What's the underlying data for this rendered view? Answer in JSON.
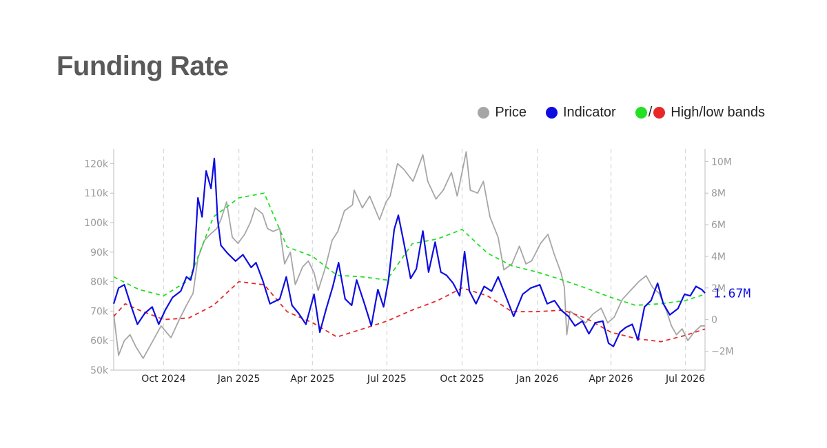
{
  "title": "Funding Rate",
  "legend": {
    "price_label": "Price",
    "indicator_label": "Indicator",
    "slash": "/",
    "bands_label": "High/low bands"
  },
  "colors": {
    "price": "#a6a6a6",
    "indicator": "#0d0de0",
    "high_band": "#22e022",
    "low_band": "#e82828",
    "grid": "#d9d9d9",
    "axis": "#bdbdbd"
  },
  "chart_data": {
    "type": "line",
    "title": "Funding Rate",
    "x_range": [
      "2024-08-01",
      "2026-07-25"
    ],
    "x_ticks": [
      {
        "date": "2024-10-01",
        "label": "Oct 2024"
      },
      {
        "date": "2025-01-01",
        "label": "Jan 2025"
      },
      {
        "date": "2025-04-01",
        "label": "Apr 2025"
      },
      {
        "date": "2025-07-01",
        "label": "Jul 2025"
      },
      {
        "date": "2025-10-01",
        "label": "Oct 2025"
      },
      {
        "date": "2026-01-01",
        "label": "Jan 2026"
      },
      {
        "date": "2026-04-01",
        "label": "Apr 2026"
      },
      {
        "date": "2026-07-01",
        "label": "Jul 2026"
      }
    ],
    "y_left": {
      "range": [
        50000,
        125000
      ],
      "ticks": [
        50000,
        60000,
        70000,
        80000,
        90000,
        100000,
        110000,
        120000
      ],
      "tick_labels": [
        "50k",
        "60k",
        "70k",
        "80k",
        "90k",
        "100k",
        "110k",
        "120k"
      ]
    },
    "y_right": {
      "range": [
        -3200000,
        10800000
      ],
      "ticks": [
        -2000000,
        0,
        2000000,
        4000000,
        6000000,
        8000000,
        10000000
      ],
      "tick_labels": [
        "−2M",
        "0",
        "2M",
        "4M",
        "6M",
        "8M",
        "10M"
      ]
    },
    "grid": "vertical dashed at x ticks",
    "legend_position": "top-right",
    "series": [
      {
        "name": "Price",
        "axis": "left",
        "style": "solid",
        "points": [
          [
            "2024-08-01",
            69000
          ],
          [
            "2024-08-07",
            55000
          ],
          [
            "2024-08-14",
            60000
          ],
          [
            "2024-08-21",
            62000
          ],
          [
            "2024-08-28",
            58000
          ],
          [
            "2024-09-06",
            54000
          ],
          [
            "2024-09-16",
            59000
          ],
          [
            "2024-09-28",
            65000
          ],
          [
            "2024-10-10",
            61000
          ],
          [
            "2024-10-20",
            67000
          ],
          [
            "2024-10-29",
            72000
          ],
          [
            "2024-11-06",
            76000
          ],
          [
            "2024-11-12",
            88000
          ],
          [
            "2024-11-20",
            94000
          ],
          [
            "2024-11-27",
            96000
          ],
          [
            "2024-12-05",
            98000
          ],
          [
            "2024-12-10",
            101000
          ],
          [
            "2024-12-17",
            107000
          ],
          [
            "2024-12-24",
            95000
          ],
          [
            "2024-12-31",
            93000
          ],
          [
            "2025-01-08",
            96000
          ],
          [
            "2025-01-15",
            100000
          ],
          [
            "2025-01-21",
            105000
          ],
          [
            "2025-01-30",
            103000
          ],
          [
            "2025-02-05",
            98000
          ],
          [
            "2025-02-12",
            97000
          ],
          [
            "2025-02-20",
            98000
          ],
          [
            "2025-02-26",
            86000
          ],
          [
            "2025-03-05",
            90000
          ],
          [
            "2025-03-11",
            79000
          ],
          [
            "2025-03-20",
            85000
          ],
          [
            "2025-03-27",
            87000
          ],
          [
            "2025-04-03",
            83000
          ],
          [
            "2025-04-08",
            77000
          ],
          [
            "2025-04-17",
            85000
          ],
          [
            "2025-04-25",
            94000
          ],
          [
            "2025-05-02",
            97000
          ],
          [
            "2025-05-10",
            104000
          ],
          [
            "2025-05-20",
            106000
          ],
          [
            "2025-05-22",
            111000
          ],
          [
            "2025-06-01",
            105000
          ],
          [
            "2025-06-10",
            109000
          ],
          [
            "2025-06-22",
            101000
          ],
          [
            "2025-06-30",
            107000
          ],
          [
            "2025-07-05",
            109000
          ],
          [
            "2025-07-14",
            120000
          ],
          [
            "2025-07-22",
            118000
          ],
          [
            "2025-08-02",
            114000
          ],
          [
            "2025-08-14",
            123000
          ],
          [
            "2025-08-20",
            114000
          ],
          [
            "2025-08-30",
            108000
          ],
          [
            "2025-09-08",
            111000
          ],
          [
            "2025-09-18",
            117000
          ],
          [
            "2025-09-25",
            109000
          ],
          [
            "2025-10-06",
            124000
          ],
          [
            "2025-10-11",
            111000
          ],
          [
            "2025-10-20",
            110000
          ],
          [
            "2025-10-27",
            114000
          ],
          [
            "2025-11-04",
            102000
          ],
          [
            "2025-11-14",
            95000
          ],
          [
            "2025-11-21",
            84000
          ],
          [
            "2025-12-01",
            86000
          ],
          [
            "2025-12-10",
            92000
          ],
          [
            "2025-12-18",
            86000
          ],
          [
            "2025-12-25",
            87000
          ],
          [
            "2026-01-05",
            93000
          ],
          [
            "2026-01-14",
            96000
          ],
          [
            "2026-01-22",
            89000
          ],
          [
            "2026-01-30",
            83000
          ],
          [
            "2026-02-03",
            78000
          ],
          [
            "2026-02-06",
            62000
          ],
          [
            "2026-02-10",
            70000
          ],
          [
            "2026-02-20",
            68000
          ],
          [
            "2026-03-01",
            66000
          ],
          [
            "2026-03-10",
            69000
          ],
          [
            "2026-03-20",
            71000
          ],
          [
            "2026-03-28",
            66000
          ],
          [
            "2026-04-05",
            68000
          ],
          [
            "2026-04-15",
            74000
          ],
          [
            "2026-04-25",
            77000
          ],
          [
            "2026-05-05",
            80000
          ],
          [
            "2026-05-14",
            82000
          ],
          [
            "2026-05-22",
            78000
          ],
          [
            "2026-05-30",
            76000
          ],
          [
            "2026-06-08",
            70000
          ],
          [
            "2026-06-14",
            65000
          ],
          [
            "2026-06-20",
            62000
          ],
          [
            "2026-06-27",
            64000
          ],
          [
            "2026-07-04",
            60000
          ],
          [
            "2026-07-12",
            63000
          ],
          [
            "2026-07-20",
            65000
          ],
          [
            "2026-07-25",
            65000
          ]
        ]
      },
      {
        "name": "Indicator",
        "axis": "right",
        "style": "solid",
        "points": [
          [
            "2024-08-01",
            1000000
          ],
          [
            "2024-08-07",
            2000000
          ],
          [
            "2024-08-14",
            2200000
          ],
          [
            "2024-08-22",
            900000
          ],
          [
            "2024-08-30",
            -300000
          ],
          [
            "2024-09-08",
            400000
          ],
          [
            "2024-09-17",
            800000
          ],
          [
            "2024-09-25",
            -300000
          ],
          [
            "2024-10-03",
            600000
          ],
          [
            "2024-10-12",
            1400000
          ],
          [
            "2024-10-22",
            1800000
          ],
          [
            "2024-10-29",
            2700000
          ],
          [
            "2024-11-03",
            2500000
          ],
          [
            "2024-11-07",
            3300000
          ],
          [
            "2024-11-12",
            7700000
          ],
          [
            "2024-11-17",
            6500000
          ],
          [
            "2024-11-22",
            9400000
          ],
          [
            "2024-11-28",
            8300000
          ],
          [
            "2024-12-02",
            10200000
          ],
          [
            "2024-12-06",
            6400000
          ],
          [
            "2024-12-10",
            4700000
          ],
          [
            "2024-12-18",
            4200000
          ],
          [
            "2024-12-28",
            3700000
          ],
          [
            "2025-01-06",
            4100000
          ],
          [
            "2025-01-16",
            3300000
          ],
          [
            "2025-01-22",
            3600000
          ],
          [
            "2025-01-30",
            2500000
          ],
          [
            "2025-02-08",
            1000000
          ],
          [
            "2025-02-20",
            1300000
          ],
          [
            "2025-02-28",
            2700000
          ],
          [
            "2025-03-07",
            900000
          ],
          [
            "2025-03-15",
            400000
          ],
          [
            "2025-03-24",
            -300000
          ],
          [
            "2025-04-03",
            1600000
          ],
          [
            "2025-04-10",
            -800000
          ],
          [
            "2025-04-18",
            700000
          ],
          [
            "2025-04-26",
            2100000
          ],
          [
            "2025-05-03",
            3600000
          ],
          [
            "2025-05-11",
            1300000
          ],
          [
            "2025-05-19",
            900000
          ],
          [
            "2025-05-25",
            2500000
          ],
          [
            "2025-06-03",
            1100000
          ],
          [
            "2025-06-12",
            -400000
          ],
          [
            "2025-06-20",
            1900000
          ],
          [
            "2025-06-27",
            800000
          ],
          [
            "2025-07-03",
            2500000
          ],
          [
            "2025-07-10",
            5700000
          ],
          [
            "2025-07-15",
            6600000
          ],
          [
            "2025-07-22",
            4800000
          ],
          [
            "2025-07-30",
            2600000
          ],
          [
            "2025-08-06",
            3200000
          ],
          [
            "2025-08-14",
            5600000
          ],
          [
            "2025-08-21",
            3000000
          ],
          [
            "2025-08-29",
            4900000
          ],
          [
            "2025-09-05",
            3000000
          ],
          [
            "2025-09-12",
            2800000
          ],
          [
            "2025-09-20",
            2300000
          ],
          [
            "2025-09-28",
            1500000
          ],
          [
            "2025-10-04",
            4300000
          ],
          [
            "2025-10-10",
            1800000
          ],
          [
            "2025-10-18",
            1000000
          ],
          [
            "2025-10-28",
            2100000
          ],
          [
            "2025-11-06",
            1800000
          ],
          [
            "2025-11-14",
            2700000
          ],
          [
            "2025-11-24",
            1400000
          ],
          [
            "2025-12-03",
            200000
          ],
          [
            "2025-12-14",
            1600000
          ],
          [
            "2025-12-24",
            2000000
          ],
          [
            "2026-01-04",
            2200000
          ],
          [
            "2026-01-13",
            1000000
          ],
          [
            "2026-01-22",
            1200000
          ],
          [
            "2026-01-30",
            600000
          ],
          [
            "2026-02-08",
            200000
          ],
          [
            "2026-02-16",
            -400000
          ],
          [
            "2026-02-25",
            -100000
          ],
          [
            "2026-03-05",
            -900000
          ],
          [
            "2026-03-13",
            -200000
          ],
          [
            "2026-03-22",
            -100000
          ],
          [
            "2026-03-29",
            -1500000
          ],
          [
            "2026-04-04",
            -1700000
          ],
          [
            "2026-04-12",
            -800000
          ],
          [
            "2026-04-19",
            -500000
          ],
          [
            "2026-04-27",
            -300000
          ],
          [
            "2026-05-04",
            -1300000
          ],
          [
            "2026-05-12",
            800000
          ],
          [
            "2026-05-20",
            1200000
          ],
          [
            "2026-05-28",
            2300000
          ],
          [
            "2026-06-04",
            1000000
          ],
          [
            "2026-06-12",
            300000
          ],
          [
            "2026-06-22",
            700000
          ],
          [
            "2026-06-30",
            1600000
          ],
          [
            "2026-07-07",
            1500000
          ],
          [
            "2026-07-14",
            2100000
          ],
          [
            "2026-07-21",
            1900000
          ],
          [
            "2026-07-25",
            1670000
          ]
        ]
      },
      {
        "name": "High band",
        "axis": "right",
        "style": "dashed",
        "points": [
          [
            "2024-08-01",
            2700000
          ],
          [
            "2024-09-01",
            1900000
          ],
          [
            "2024-10-01",
            1500000
          ],
          [
            "2024-11-01",
            2500000
          ],
          [
            "2024-12-01",
            6500000
          ],
          [
            "2025-01-01",
            7700000
          ],
          [
            "2025-02-01",
            8000000
          ],
          [
            "2025-03-01",
            4600000
          ],
          [
            "2025-04-01",
            4000000
          ],
          [
            "2025-05-01",
            2800000
          ],
          [
            "2025-06-01",
            2700000
          ],
          [
            "2025-07-01",
            2500000
          ],
          [
            "2025-08-01",
            4800000
          ],
          [
            "2025-09-01",
            5100000
          ],
          [
            "2025-10-01",
            5700000
          ],
          [
            "2025-11-01",
            4200000
          ],
          [
            "2025-12-01",
            3400000
          ],
          [
            "2026-01-01",
            3000000
          ],
          [
            "2026-02-01",
            2500000
          ],
          [
            "2026-03-01",
            2000000
          ],
          [
            "2026-04-01",
            1400000
          ],
          [
            "2026-05-01",
            900000
          ],
          [
            "2026-06-01",
            1000000
          ],
          [
            "2026-07-01",
            1200000
          ],
          [
            "2026-07-25",
            1600000
          ]
        ]
      },
      {
        "name": "Low band",
        "axis": "right",
        "style": "dashed",
        "points": [
          [
            "2024-08-01",
            200000
          ],
          [
            "2024-08-15",
            1000000
          ],
          [
            "2024-09-01",
            600000
          ],
          [
            "2024-10-01",
            0
          ],
          [
            "2024-11-01",
            100000
          ],
          [
            "2024-12-01",
            900000
          ],
          [
            "2025-01-01",
            2400000
          ],
          [
            "2025-02-01",
            2200000
          ],
          [
            "2025-03-01",
            500000
          ],
          [
            "2025-04-01",
            -200000
          ],
          [
            "2025-05-01",
            -1100000
          ],
          [
            "2025-06-01",
            -600000
          ],
          [
            "2025-07-01",
            -100000
          ],
          [
            "2025-08-01",
            600000
          ],
          [
            "2025-09-01",
            1200000
          ],
          [
            "2025-10-01",
            2000000
          ],
          [
            "2025-11-01",
            1500000
          ],
          [
            "2025-12-01",
            500000
          ],
          [
            "2026-01-01",
            500000
          ],
          [
            "2026-02-01",
            600000
          ],
          [
            "2026-03-01",
            100000
          ],
          [
            "2026-04-01",
            -800000
          ],
          [
            "2026-05-01",
            -1200000
          ],
          [
            "2026-06-01",
            -1400000
          ],
          [
            "2026-07-01",
            -1000000
          ],
          [
            "2026-07-25",
            -600000
          ]
        ]
      }
    ],
    "annotations": [
      {
        "text": "1.67M",
        "date": "2026-07-25",
        "value": 1670000,
        "axis": "right"
      }
    ]
  }
}
